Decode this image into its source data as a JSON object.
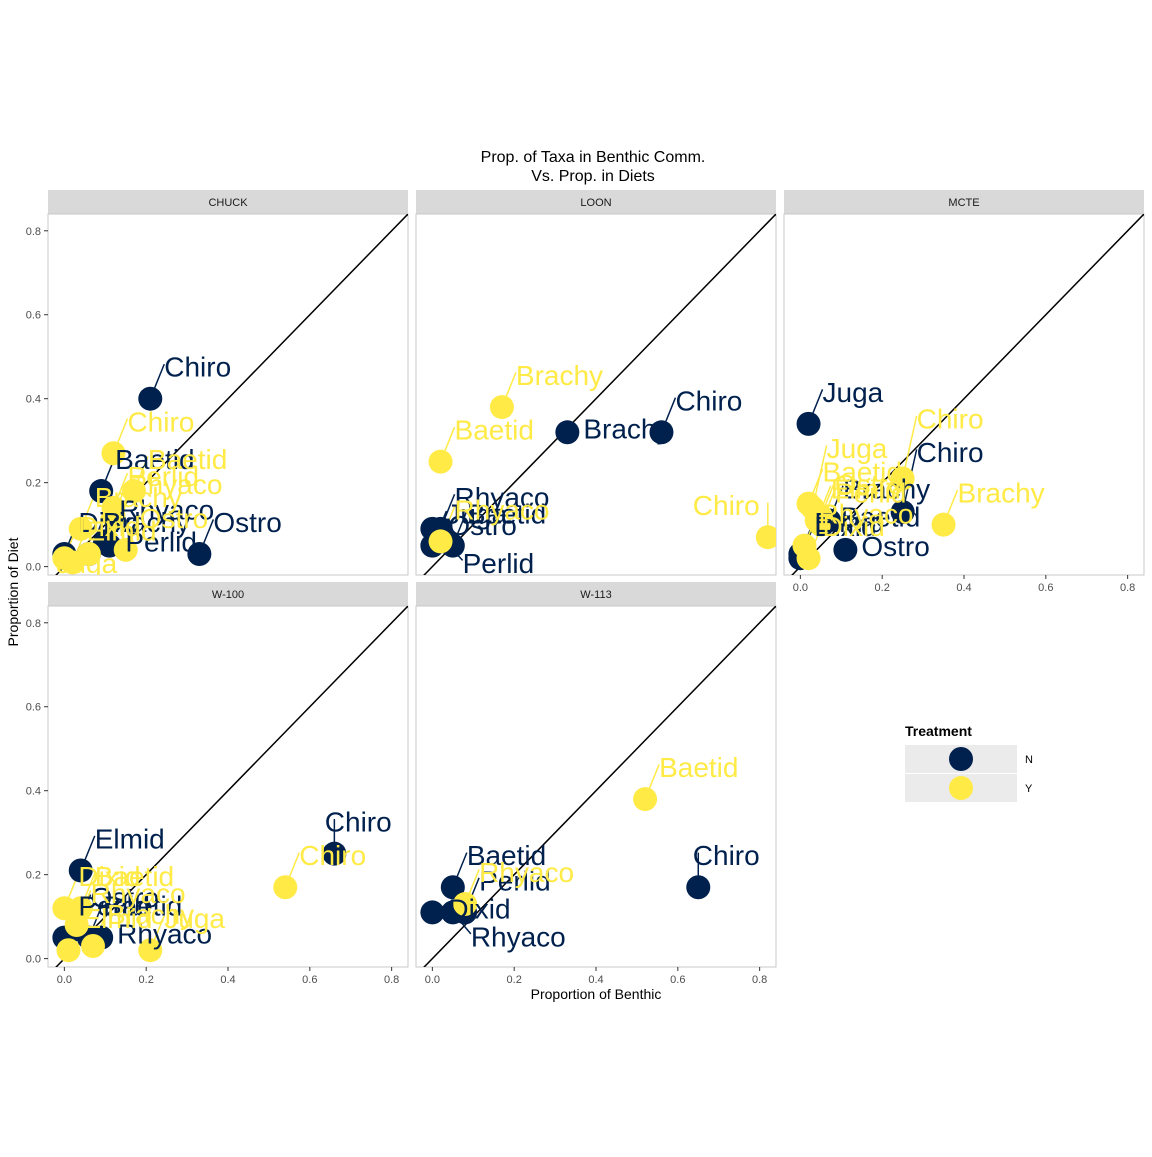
{
  "title_line1": "Prop. of Taxa in Benthic Comm.",
  "title_line2": "Vs. Prop. in Diets",
  "colors": {
    "N": "#00204D",
    "Y": "#FFEA46",
    "strip": "#D9D9D9",
    "panel_border": "#C8C8C8"
  },
  "chart_data": {
    "type": "scatter",
    "xlabel": "Proportion of Benthic",
    "ylabel": "Proportion of Diet",
    "xlim": [
      -0.04,
      0.84
    ],
    "ylim": [
      -0.02,
      0.84
    ],
    "x_ticks": [
      "0.0",
      "0.2",
      "0.4",
      "0.6",
      "0.8"
    ],
    "y_ticks": [
      "0.0",
      "0.2",
      "0.4",
      "0.6",
      "0.8"
    ],
    "reference_line": "y = x",
    "legend": {
      "title": "Treatment",
      "entries": [
        {
          "key": "N",
          "label": "N"
        },
        {
          "key": "Y",
          "label": "Y"
        }
      ]
    },
    "panels": [
      {
        "name": "CHUCK",
        "points": [
          {
            "taxon": "Chiro",
            "treatment": "N",
            "x": 0.21,
            "y": 0.4
          },
          {
            "taxon": "Baetid",
            "treatment": "N",
            "x": 0.09,
            "y": 0.18
          },
          {
            "taxon": "Rhyaco",
            "treatment": "N",
            "x": 0.1,
            "y": 0.06
          },
          {
            "taxon": "Perlid",
            "treatment": "N",
            "x": 0.11,
            "y": 0.05
          },
          {
            "taxon": "Ostro",
            "treatment": "N",
            "x": 0.33,
            "y": 0.03
          },
          {
            "taxon": "Dixid",
            "treatment": "N",
            "x": 0.0,
            "y": 0.03
          },
          {
            "taxon": "Brachy",
            "treatment": "N",
            "x": 0.06,
            "y": 0.03
          },
          {
            "taxon": "Chiro",
            "treatment": "Y",
            "x": 0.12,
            "y": 0.27
          },
          {
            "taxon": "Perlid",
            "treatment": "Y",
            "x": 0.12,
            "y": 0.14
          },
          {
            "taxon": "Baetid",
            "treatment": "Y",
            "x": 0.17,
            "y": 0.18
          },
          {
            "taxon": "Rhyaco",
            "treatment": "Y",
            "x": 0.12,
            "y": 0.12
          },
          {
            "taxon": "Brachy",
            "treatment": "Y",
            "x": 0.04,
            "y": 0.09
          },
          {
            "taxon": "Dixid",
            "treatment": "Y",
            "x": 0.0,
            "y": 0.02
          },
          {
            "taxon": "Elmid",
            "treatment": "Y",
            "x": 0.02,
            "y": 0.01
          },
          {
            "taxon": "Juga",
            "treatment": "Y",
            "x": 0.06,
            "y": 0.03
          },
          {
            "taxon": "Ostro",
            "treatment": "Y",
            "x": 0.15,
            "y": 0.04
          }
        ]
      },
      {
        "name": "LOON",
        "points": [
          {
            "taxon": "Chiro",
            "treatment": "N",
            "x": 0.56,
            "y": 0.32
          },
          {
            "taxon": "Brachy",
            "treatment": "N",
            "x": 0.33,
            "y": 0.32
          },
          {
            "taxon": "Rhyaco",
            "treatment": "N",
            "x": 0.02,
            "y": 0.09
          },
          {
            "taxon": "Ostro",
            "treatment": "N",
            "x": 0.0,
            "y": 0.09
          },
          {
            "taxon": "Perlid",
            "treatment": "N",
            "x": 0.03,
            "y": 0.06
          },
          {
            "taxon": "Juga",
            "treatment": "N",
            "x": 0.0,
            "y": 0.05
          },
          {
            "taxon": "Baetid",
            "treatment": "N",
            "x": 0.05,
            "y": 0.05
          },
          {
            "taxon": "Brachy",
            "treatment": "Y",
            "x": 0.17,
            "y": 0.38
          },
          {
            "taxon": "Baetid",
            "treatment": "Y",
            "x": 0.02,
            "y": 0.25
          },
          {
            "taxon": "Rhyaco",
            "treatment": "Y",
            "x": 0.02,
            "y": 0.06
          },
          {
            "taxon": "Chiro",
            "treatment": "Y",
            "x": 0.82,
            "y": 0.07
          }
        ]
      },
      {
        "name": "MCTE",
        "points": [
          {
            "taxon": "Juga",
            "treatment": "N",
            "x": 0.02,
            "y": 0.34
          },
          {
            "taxon": "Brachy",
            "treatment": "N",
            "x": 0.07,
            "y": 0.11
          },
          {
            "taxon": "Baetid",
            "treatment": "N",
            "x": 0.06,
            "y": 0.11
          },
          {
            "taxon": "Chiro",
            "treatment": "N",
            "x": 0.25,
            "y": 0.13
          },
          {
            "taxon": "Ostro",
            "treatment": "N",
            "x": 0.11,
            "y": 0.04
          },
          {
            "taxon": "Elmid",
            "treatment": "N",
            "x": 0.0,
            "y": 0.03
          },
          {
            "taxon": "Dixid",
            "treatment": "N",
            "x": 0.0,
            "y": 0.02
          },
          {
            "taxon": "Juga",
            "treatment": "Y",
            "x": 0.03,
            "y": 0.14
          },
          {
            "taxon": "Ostro",
            "treatment": "Y",
            "x": 0.05,
            "y": 0.12
          },
          {
            "taxon": "Elmid",
            "treatment": "Y",
            "x": 0.04,
            "y": 0.11
          },
          {
            "taxon": "Chiro",
            "treatment": "Y",
            "x": 0.25,
            "y": 0.21
          },
          {
            "taxon": "Baetid",
            "treatment": "Y",
            "x": 0.02,
            "y": 0.15
          },
          {
            "taxon": "Perlid",
            "treatment": "Y",
            "x": 0.05,
            "y": 0.1
          },
          {
            "taxon": "Brachy",
            "treatment": "Y",
            "x": 0.35,
            "y": 0.1
          },
          {
            "taxon": "Rhyaco",
            "treatment": "Y",
            "x": 0.01,
            "y": 0.05
          },
          {
            "taxon": "Dixid",
            "treatment": "Y",
            "x": 0.02,
            "y": 0.02
          }
        ]
      },
      {
        "name": "W-100",
        "points": [
          {
            "taxon": "Chiro",
            "treatment": "N",
            "x": 0.66,
            "y": 0.25
          },
          {
            "taxon": "Elmid",
            "treatment": "N",
            "x": 0.04,
            "y": 0.21
          },
          {
            "taxon": "Ostro",
            "treatment": "N",
            "x": 0.03,
            "y": 0.07
          },
          {
            "taxon": "Rhyaco",
            "treatment": "N",
            "x": 0.09,
            "y": 0.05
          },
          {
            "taxon": "Baetid",
            "treatment": "N",
            "x": 0.06,
            "y": 0.05
          },
          {
            "taxon": "Perlid",
            "treatment": "N",
            "x": 0.0,
            "y": 0.05
          },
          {
            "taxon": "Chiro",
            "treatment": "Y",
            "x": 0.54,
            "y": 0.17
          },
          {
            "taxon": "Dixid",
            "treatment": "Y",
            "x": 0.0,
            "y": 0.12
          },
          {
            "taxon": "Baetid",
            "treatment": "Y",
            "x": 0.04,
            "y": 0.12
          },
          {
            "taxon": "Rhyaco",
            "treatment": "Y",
            "x": 0.03,
            "y": 0.08
          },
          {
            "taxon": "Brachy",
            "treatment": "Y",
            "x": 0.07,
            "y": 0.03
          },
          {
            "taxon": "Juga",
            "treatment": "Y",
            "x": 0.21,
            "y": 0.02
          },
          {
            "taxon": "Elmid",
            "treatment": "Y",
            "x": 0.01,
            "y": 0.02
          }
        ]
      },
      {
        "name": "W-113",
        "points": [
          {
            "taxon": "Baetid",
            "treatment": "N",
            "x": 0.05,
            "y": 0.17
          },
          {
            "taxon": "Chiro",
            "treatment": "N",
            "x": 0.65,
            "y": 0.17
          },
          {
            "taxon": "Dixid",
            "treatment": "N",
            "x": 0.0,
            "y": 0.11
          },
          {
            "taxon": "Rhyaco",
            "treatment": "N",
            "x": 0.05,
            "y": 0.11
          },
          {
            "taxon": "Perlid",
            "treatment": "N",
            "x": 0.08,
            "y": 0.11
          },
          {
            "taxon": "Baetid",
            "treatment": "Y",
            "x": 0.52,
            "y": 0.38
          },
          {
            "taxon": "Rhyaco",
            "treatment": "Y",
            "x": 0.08,
            "y": 0.13
          }
        ]
      }
    ]
  }
}
